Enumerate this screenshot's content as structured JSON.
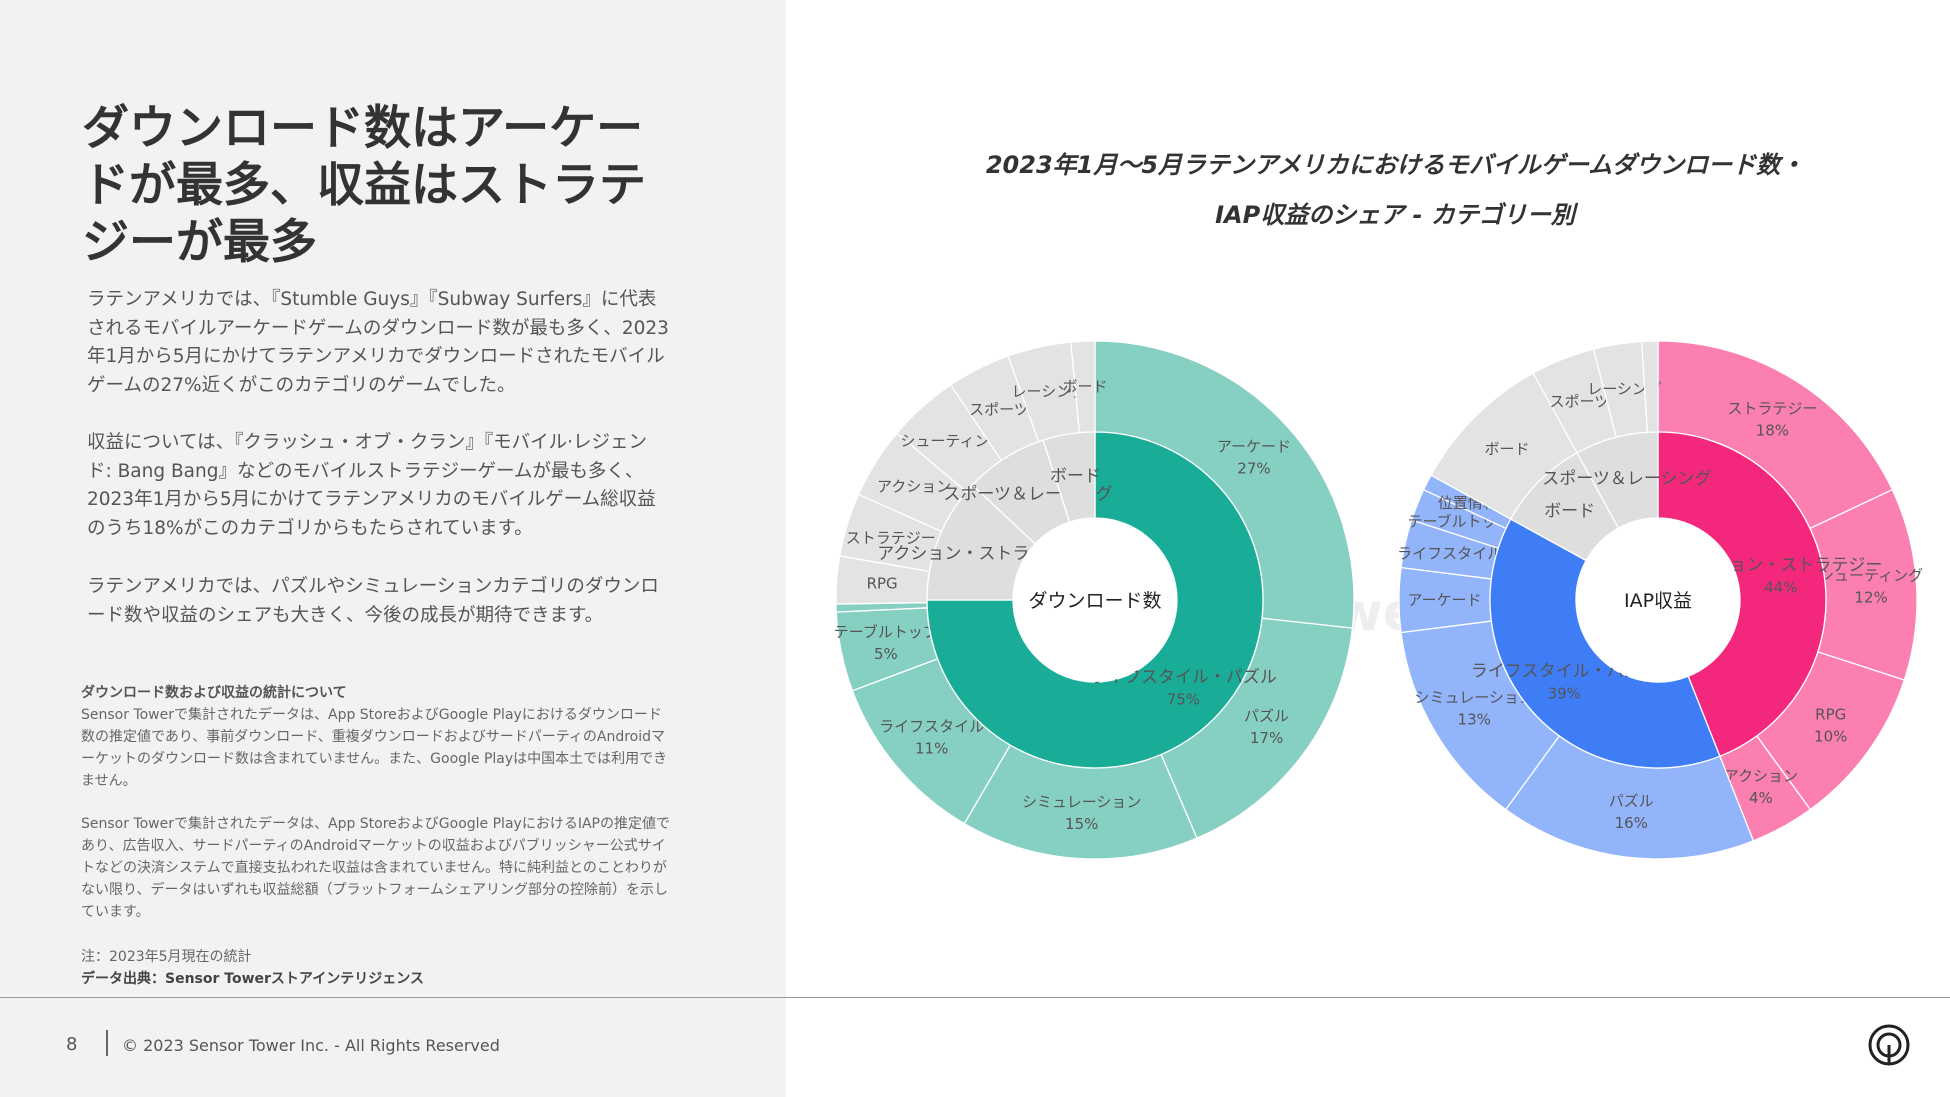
{
  "headline": "ダウンロード数はアーケードが最多、収益はストラテジーが最多",
  "paragraphs": [
    "ラテンアメリカでは、『Stumble Guys』『Subway Surfers』に代表されるモバイルアーケードゲームのダウンロード数が最も多く、2023年1月から5月にかけてラテンアメリカでダウンロードされたモバイルゲームの27%近くがこのカテゴリのゲームでした。",
    "収益については、『クラッシュ・オブ・クラン』『モバイル·レジェンド: Bang Bang』などのモバイルストラテジーゲームが最も多く、2023年1月から5月にかけてラテンアメリカのモバイルゲーム総収益のうち18%がこのカテゴリからもたらされています。",
    "ラテンアメリカでは、パズルやシミュレーションカテゴリのダウンロード数や収益のシェアも大きく、今後の成長が期待できます。"
  ],
  "stats_title": "ダウンロード数および収益の統計について",
  "stats_body_1": "Sensor Towerで集計されたデータは、App StoreおよびGoogle Playにおけるダウンロード数の推定値であり、事前ダウンロード、重複ダウンロードおよびサードパーティのAndroidマーケットのダウンロード数は含まれていません。また、Google Playは中国本土では利用できません。",
  "stats_body_2": "Sensor Towerで集計されたデータは、App StoreおよびGoogle PlayにおけるIAPの推定値であり、広告収入、サードパーティのAndroidマーケットの収益およびパブリッシャー公式サイトなどの決済システムで直接支払われた収益は含まれていません。特に純利益とのことわりがない限り、データはいずれも収益総額（プラットフォームシェアリング部分の控除前）を示しています。",
  "note": "注：2023年5月現在の統計",
  "source": "データ出典：Sensor Towerストアインテリジェンス",
  "footer": {
    "page": "8",
    "copyright": "© 2023 Sensor Tower Inc. - All Rights Reserved"
  },
  "chart_title_line1": "2023年1月～5月ラテンアメリカにおけるモバイルゲームダウンロード数・",
  "chart_title_line2": "IAP収益のシェア - カテゴリー別",
  "watermark": "SensorTower",
  "colors": {
    "download_inner": "#19ad97",
    "download_outer": "#86cfc3",
    "revenue_strategy_inner": "#f3287d",
    "revenue_strategy_outer": "#fb7fb0",
    "revenue_puzzle_inner": "#3f7df7",
    "revenue_puzzle_outer": "#92b4fa",
    "other_inner": "#dedede",
    "other_outer": "#e3e3e3"
  },
  "chart_data": [
    {
      "type": "sunburst",
      "center_label": "ダウンロード数",
      "inner": [
        {
          "label": "ライフスタイル・パズル",
          "value": 75,
          "value_label": "75%",
          "highlight": true
        },
        {
          "label": "アクション・ストラテジー",
          "value": 12
        },
        {
          "label": "スポーツ＆レーシング",
          "value": 8
        },
        {
          "label": "ボード",
          "value": 5
        }
      ],
      "outer": [
        {
          "label": "アーケード",
          "value": 27,
          "value_label": "27%",
          "highlight": true
        },
        {
          "label": "パズル",
          "value": 17,
          "value_label": "17%",
          "highlight": true
        },
        {
          "label": "シミュレーション",
          "value": 15,
          "value_label": "15%",
          "highlight": true
        },
        {
          "label": "ライフスタイル",
          "value": 11,
          "value_label": "11%",
          "highlight": true
        },
        {
          "label": "テーブルトップ",
          "value": 5,
          "value_label": "5%",
          "highlight": true
        },
        {
          "label": "",
          "value": 0.5,
          "highlight": true
        },
        {
          "label": "RPG",
          "value": 3
        },
        {
          "label": "ストラテジー",
          "value": 4
        },
        {
          "label": "アクション",
          "value": 4.5
        },
        {
          "label": "シューティング",
          "value": 4.5
        },
        {
          "label": "スポーツ",
          "value": 4
        },
        {
          "label": "レーシング",
          "value": 4
        },
        {
          "label": "ボード",
          "value": 1.5
        }
      ]
    },
    {
      "type": "sunburst",
      "center_label": "IAP収益",
      "inner": [
        {
          "label": "アクション・ストラテジー",
          "value": 44,
          "value_label": "44%",
          "group": "strategy"
        },
        {
          "label": "ライフスタイル・パズル",
          "value": 39,
          "value_label": "39%",
          "group": "puzzle"
        },
        {
          "label": "ボード",
          "value": 9
        },
        {
          "label": "スポーツ＆レーシング",
          "value": 8
        }
      ],
      "outer": [
        {
          "label": "ストラテジー",
          "value": 18,
          "value_label": "18%",
          "group": "strategy"
        },
        {
          "label": "シューティング",
          "value": 12,
          "value_label": "12%",
          "group": "strategy"
        },
        {
          "label": "RPG",
          "value": 10,
          "value_label": "10%",
          "group": "strategy"
        },
        {
          "label": "アクション",
          "value": 4,
          "value_label": "4%",
          "group": "strategy"
        },
        {
          "label": "パズル",
          "value": 16,
          "value_label": "16%",
          "group": "puzzle"
        },
        {
          "label": "シミュレーション",
          "value": 13,
          "value_label": "13%",
          "group": "puzzle"
        },
        {
          "label": "アーケード",
          "value": 4,
          "group": "puzzle"
        },
        {
          "label": "ライフスタイル",
          "value": 3,
          "group": "puzzle"
        },
        {
          "label": "テーブルトップ",
          "value": 2,
          "group": "puzzle"
        },
        {
          "label": "位置情報",
          "value": 1,
          "group": "puzzle"
        },
        {
          "label": "ボード",
          "value": 9
        },
        {
          "label": "スポーツ",
          "value": 4
        },
        {
          "label": "レーシング",
          "value": 3
        },
        {
          "label": "",
          "value": 1
        }
      ]
    }
  ]
}
